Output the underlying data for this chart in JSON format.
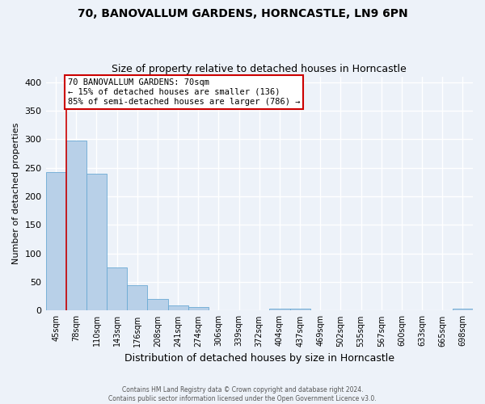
{
  "title": "70, BANOVALLUM GARDENS, HORNCASTLE, LN9 6PN",
  "subtitle": "Size of property relative to detached houses in Horncastle",
  "xlabel": "Distribution of detached houses by size in Horncastle",
  "ylabel": "Number of detached properties",
  "bin_labels": [
    "45sqm",
    "78sqm",
    "110sqm",
    "143sqm",
    "176sqm",
    "208sqm",
    "241sqm",
    "274sqm",
    "306sqm",
    "339sqm",
    "372sqm",
    "404sqm",
    "437sqm",
    "469sqm",
    "502sqm",
    "535sqm",
    "567sqm",
    "600sqm",
    "633sqm",
    "665sqm",
    "698sqm"
  ],
  "bar_heights": [
    242,
    298,
    239,
    76,
    45,
    21,
    9,
    6,
    0,
    0,
    0,
    4,
    4,
    0,
    0,
    0,
    0,
    0,
    0,
    0,
    4
  ],
  "bar_color": "#b8d0e8",
  "bar_edge_color": "#6aaad4",
  "property_line_label": "70 BANOVALLUM GARDENS: 70sqm",
  "annotation_line1": "← 15% of detached houses are smaller (136)",
  "annotation_line2": "85% of semi-detached houses are larger (786) →",
  "annotation_box_color": "#ffffff",
  "annotation_box_edge_color": "#cc0000",
  "property_vline_color": "#cc0000",
  "ylim": [
    0,
    410
  ],
  "yticks": [
    0,
    50,
    100,
    150,
    200,
    250,
    300,
    350,
    400
  ],
  "footer_line1": "Contains HM Land Registry data © Crown copyright and database right 2024.",
  "footer_line2": "Contains public sector information licensed under the Open Government Licence v3.0.",
  "bg_color": "#edf2f9",
  "plot_bg_color": "#edf2f9",
  "grid_color": "#ffffff",
  "title_fontsize": 10,
  "subtitle_fontsize": 9,
  "ylabel_fontsize": 8,
  "xlabel_fontsize": 9,
  "annotation_fontsize": 7.5,
  "tick_fontsize": 7
}
